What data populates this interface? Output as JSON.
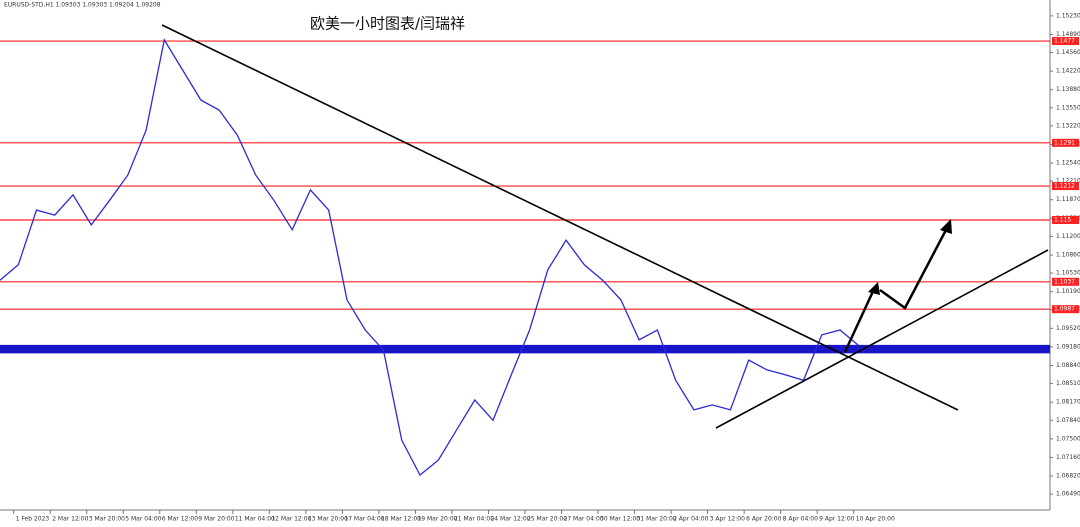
{
  "chart_data": {
    "type": "line",
    "header": "EURUSD-STD,H1  1.09303 1.09303 1.09204 1.09208",
    "title": "欧美一小时图表/闫瑞祥",
    "x": [
      -12,
      4,
      20,
      36,
      52,
      68,
      84,
      100,
      116,
      132,
      148,
      164,
      180,
      196,
      212,
      228,
      244,
      260,
      276,
      292,
      308,
      324,
      340,
      356,
      372,
      388,
      404,
      420,
      436,
      452,
      468,
      484,
      500,
      516,
      532,
      548,
      564,
      580,
      596,
      612,
      628,
      644,
      660,
      676,
      692,
      708,
      724,
      740
    ],
    "series": [
      {
        "name": "EURUSD-STD,H1",
        "color": "#2b2bd6",
        "values": [
          1.104,
          1.1068,
          1.1168,
          1.1159,
          1.1196,
          1.1141,
          1.1186,
          1.1232,
          1.1314,
          1.1479,
          1.1424,
          1.1369,
          1.1351,
          1.1305,
          1.1232,
          1.1186,
          1.1132,
          1.1205,
          1.1168,
          1.1004,
          1.0949,
          1.0912,
          1.0748,
          1.0684,
          1.0711,
          1.0766,
          1.0821,
          1.0784,
          1.0867,
          1.0949,
          1.1059,
          1.1113,
          1.1068,
          1.104,
          1.1004,
          1.0931,
          1.0949,
          1.0857,
          1.0803,
          1.0812,
          1.0803,
          1.0894,
          1.0876,
          1.0867,
          1.0857,
          1.094,
          1.0949,
          1.0921
        ]
      }
    ],
    "xlim": [
      -12,
      908
    ],
    "xticks": [
      {
        "value": 0,
        "label": "1 Feb 2023"
      },
      {
        "value": 32,
        "label": "2 Mar 12:00"
      },
      {
        "value": 64,
        "label": "3 Mar 20:00"
      },
      {
        "value": 96,
        "label": "5 Mar 04:00"
      },
      {
        "value": 128,
        "label": "6 Mar 12:00"
      },
      {
        "value": 160,
        "label": "9 Mar 20:00"
      },
      {
        "value": 192,
        "label": "11 Mar 04:00"
      },
      {
        "value": 224,
        "label": "12 Mar 12:00"
      },
      {
        "value": 256,
        "label": "13 Mar 20:00"
      },
      {
        "value": 288,
        "label": "17 Mar 04:00"
      },
      {
        "value": 320,
        "label": "18 Mar 12:00"
      },
      {
        "value": 352,
        "label": "19 Mar 20:00"
      },
      {
        "value": 384,
        "label": "21 Mar 04:00"
      },
      {
        "value": 416,
        "label": "24 Mar 12:00"
      },
      {
        "value": 448,
        "label": "25 Mar 20:00"
      },
      {
        "value": 480,
        "label": "27 Mar 04:00"
      },
      {
        "value": 512,
        "label": "30 Mar 12:00"
      },
      {
        "value": 544,
        "label": "31 Mar 20:00"
      },
      {
        "value": 576,
        "label": "2 Apr 04:00"
      },
      {
        "value": 608,
        "label": "3 Apr 12:00"
      },
      {
        "value": 640,
        "label": "6 Apr 20:00"
      },
      {
        "value": 672,
        "label": "8 Apr 04:00"
      },
      {
        "value": 704,
        "label": "9 Apr 12:00"
      },
      {
        "value": 736,
        "label": "10 Apr 20:00"
      }
    ],
    "ylim": [
      1.062,
      1.1552
    ],
    "yticks": [
      {
        "value": 1.0649,
        "label": "1.06490"
      },
      {
        "value": 1.0682,
        "label": "1.06820"
      },
      {
        "value": 1.0716,
        "label": "1.07160"
      },
      {
        "value": 1.075,
        "label": "1.07500"
      },
      {
        "value": 1.0784,
        "label": "1.07840"
      },
      {
        "value": 1.0817,
        "label": "1.08170"
      },
      {
        "value": 1.0851,
        "label": "1.08510"
      },
      {
        "value": 1.0884,
        "label": "1.08840"
      },
      {
        "value": 1.0918,
        "label": "1.09180"
      },
      {
        "value": 1.0952,
        "label": "1.09520"
      },
      {
        "value": 1.0986,
        "label": "1.09860"
      },
      {
        "value": 1.1019,
        "label": "1.10190"
      },
      {
        "value": 1.1053,
        "label": "1.10530"
      },
      {
        "value": 1.1086,
        "label": "1.10860"
      },
      {
        "value": 1.112,
        "label": "1.11200"
      },
      {
        "value": 1.1153,
        "label": "1.11530"
      },
      {
        "value": 1.1187,
        "label": "1.11870"
      },
      {
        "value": 1.1221,
        "label": "1.12210"
      },
      {
        "value": 1.1254,
        "label": "1.12540"
      },
      {
        "value": 1.1288,
        "label": "1.12880"
      },
      {
        "value": 1.1322,
        "label": "1.13220"
      },
      {
        "value": 1.1355,
        "label": "1.13550"
      },
      {
        "value": 1.1388,
        "label": "1.13880"
      },
      {
        "value": 1.1422,
        "label": "1.14220"
      },
      {
        "value": 1.1456,
        "label": "1.14560"
      },
      {
        "value": 1.1489,
        "label": "1.14890"
      },
      {
        "value": 1.1523,
        "label": "1.15230"
      }
    ],
    "levels": [
      1.1477,
      1.1291,
      1.1212,
      1.115,
      1.1037,
      1.0987
    ],
    "level_color": "#ff2020",
    "zone": [
      1.0909,
      1.0919
    ],
    "zone_color": "#1a14c8"
  }
}
